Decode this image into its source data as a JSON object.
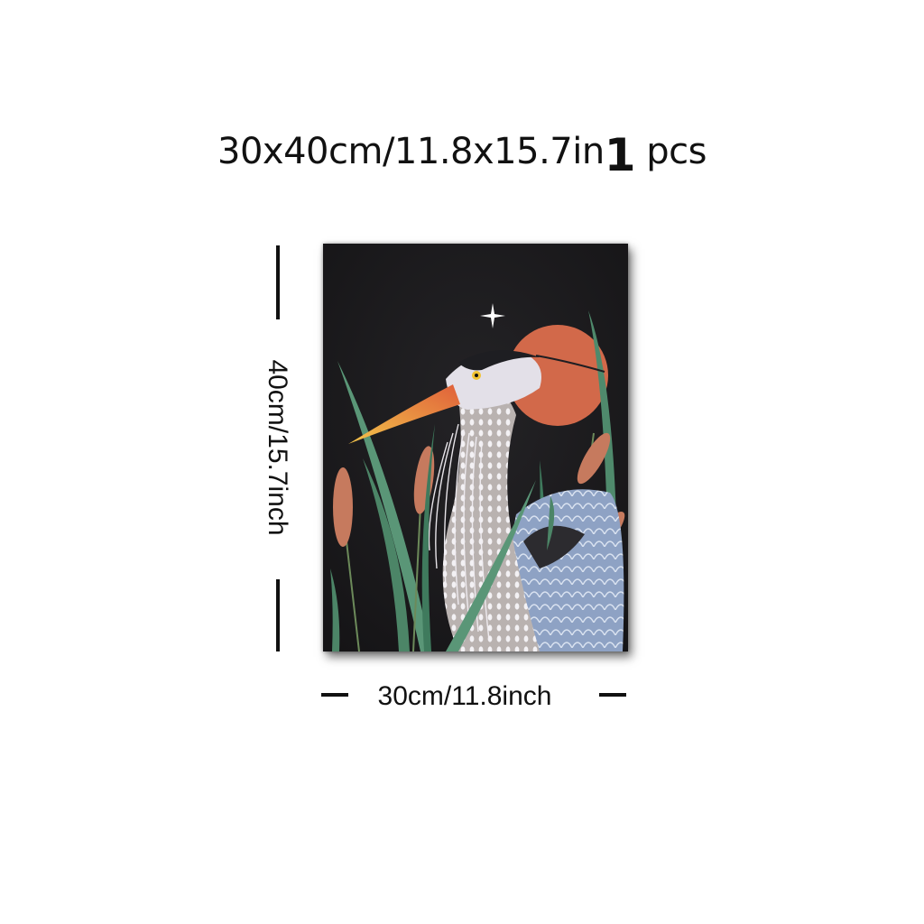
{
  "product": {
    "size_label": "30x40cm/11.8x15.7in",
    "quantity_number": "1",
    "quantity_unit": "pcs"
  },
  "dimensions": {
    "height_label": "40cm/15.7inch",
    "width_label": "30cm/11.8inch"
  },
  "artwork": {
    "subject": "heron among reeds with moon and star",
    "colors": {
      "background": "#1c1b1d",
      "moon": "#d2694a",
      "beak": "#e8843a",
      "reed": "#4f8a6c",
      "cattail": "#c67a5e",
      "feather_light": "#e9e6ee",
      "feather_blue": "#8da3c6"
    }
  }
}
